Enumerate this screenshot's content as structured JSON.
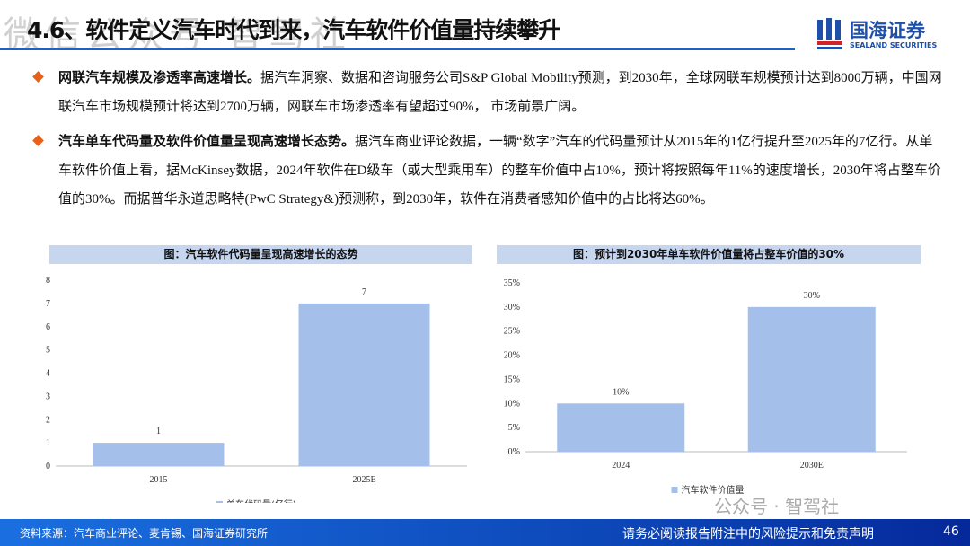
{
  "header": {
    "title": "4.6、软件定义汽车时代到来，汽车软件价值量持续攀升",
    "watermark": "微信公众号 智驾社",
    "logo": {
      "cn": "国海证券",
      "en": "SEALAND SECURITIES"
    }
  },
  "bullets": [
    {
      "bold": "网联汽车规模及渗透率高速增长。",
      "text": "据汽车洞察、数据和咨询服务公司S&P Global Mobility预测，到2030年，全球网联车规模预计达到8000万辆，中国网联汽车市场规模预计将达到2700万辆，网联车市场渗透率有望超过90%， 市场前景广阔。"
    },
    {
      "bold": "汽车单车代码量及软件价值量呈现高速增长态势。",
      "text": "据汽车商业评论数据，一辆“数字”汽车的代码量预计从2015年的1亿行提升至2025年的7亿行。从单车软件价值上看，据McKinsey数据，2024年软件在D级车（或大型乘用车）的整车价值中占10%，预计将按照每年11%的速度增长，2030年将占整车价值的30%。而据普华永道思略特(PwC Strategy&)预测称，到2030年，软件在消费者感知价值中的占比将达60%。"
    }
  ],
  "chart_data": [
    {
      "type": "bar",
      "title": "图：汽车软件代码量呈现高速增长的态势",
      "categories": [
        "2015",
        "2025E"
      ],
      "series": [
        {
          "name": "单车代码量(亿行)",
          "values": [
            1,
            7
          ]
        }
      ],
      "data_labels": [
        "1",
        "7"
      ],
      "ylim": [
        0,
        8
      ],
      "yticks": [
        "0",
        "1",
        "2",
        "3",
        "4",
        "5",
        "6",
        "7",
        "8"
      ],
      "legend": "bottom",
      "color": "#a4bfea",
      "grid": false
    },
    {
      "type": "bar",
      "title": "图：预计到2030年单车软件价值量将占整车价值的30%",
      "categories": [
        "2024",
        "2030E"
      ],
      "series": [
        {
          "name": "汽车软件价值量",
          "values": [
            10,
            30
          ]
        }
      ],
      "data_labels": [
        "10%",
        "30%"
      ],
      "ylim": [
        0,
        35
      ],
      "yticks": [
        "0%",
        "5%",
        "10%",
        "15%",
        "20%",
        "25%",
        "30%",
        "35%"
      ],
      "legend": "bottom",
      "color": "#a4bfea",
      "grid": false
    }
  ],
  "footer": {
    "source": "资料来源：汽车商业评论、麦肯锡、国海证券研究所",
    "disclaimer": "请务必阅读报告附注中的风险提示和免责声明",
    "page": "46",
    "wechat": "公众号 · 智驾社"
  }
}
